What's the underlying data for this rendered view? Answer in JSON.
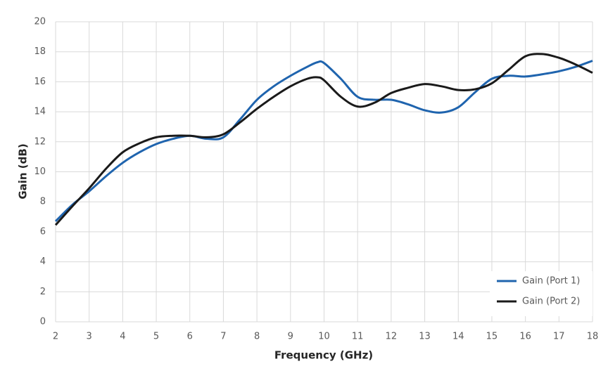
{
  "chart_data": {
    "type": "line",
    "xlabel": "Frequency (GHz)",
    "ylabel": "Gain (dB)",
    "x": [
      2,
      2.5,
      3,
      3.5,
      4,
      4.5,
      5,
      5.5,
      6,
      6.5,
      7,
      7.5,
      8,
      8.5,
      9,
      9.5,
      9.8,
      10,
      10.5,
      11,
      11.5,
      12,
      12.5,
      13,
      13.5,
      14,
      14.5,
      15,
      15.5,
      16,
      16.5,
      17,
      17.5,
      18
    ],
    "series": [
      {
        "name": "Gain (Port 1)",
        "color": "#1f64ae",
        "values": [
          6.7,
          7.8,
          8.7,
          9.7,
          10.6,
          11.3,
          11.85,
          12.2,
          12.4,
          12.2,
          12.3,
          13.5,
          14.8,
          15.7,
          16.4,
          17.0,
          17.3,
          17.25,
          16.2,
          15.0,
          14.8,
          14.8,
          14.5,
          14.1,
          13.95,
          14.3,
          15.3,
          16.2,
          16.4,
          16.35,
          16.5,
          16.7,
          17.0,
          17.4
        ]
      },
      {
        "name": "Gain (Port 2)",
        "color": "#1a1a1a",
        "values": [
          6.45,
          7.7,
          8.9,
          10.2,
          11.3,
          11.9,
          12.3,
          12.4,
          12.4,
          12.3,
          12.5,
          13.3,
          14.2,
          15.0,
          15.7,
          16.2,
          16.3,
          16.1,
          15.0,
          14.35,
          14.6,
          15.25,
          15.6,
          15.85,
          15.7,
          15.45,
          15.5,
          15.9,
          16.8,
          17.7,
          17.85,
          17.6,
          17.15,
          16.6
        ]
      }
    ],
    "xlim": [
      2,
      18
    ],
    "xticks": [
      2,
      3,
      4,
      5,
      6,
      7,
      8,
      9,
      10,
      11,
      12,
      13,
      14,
      15,
      16,
      17,
      18
    ],
    "ylim": [
      0,
      20
    ],
    "yticks": [
      0,
      2,
      4,
      6,
      8,
      10,
      12,
      14,
      16,
      18,
      20
    ],
    "grid": true,
    "legend": "lower right"
  }
}
